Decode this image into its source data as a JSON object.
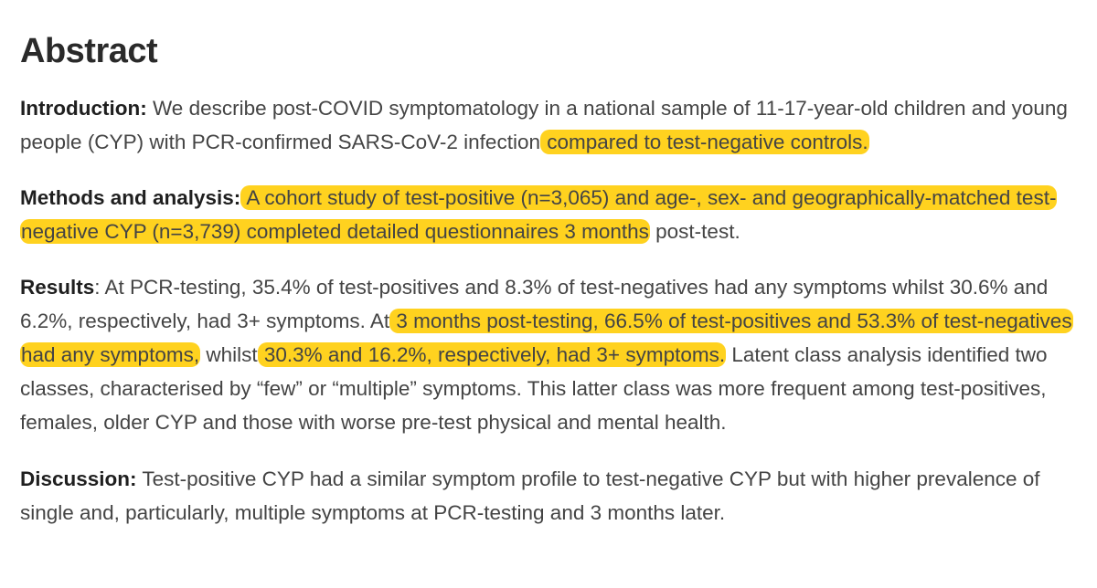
{
  "heading": "Abstract",
  "highlight_color": "#ffd21f",
  "sections": {
    "introduction": {
      "label": "Introduction:",
      "text_1": " We describe post-COVID symptomatology in a national sample of 11-17-year-old children and young people (CYP) with PCR-confirmed SARS-CoV-2 infection",
      "highlight_1": " compared to test-negative controls."
    },
    "methods": {
      "label": "Methods and analysis:",
      "highlight_1": " A cohort study of test-positive (n=3,065) and age-, sex- and geographically-matched test-negative CYP (n=3,739) completed detailed questionnaires 3 months",
      "text_1": " post-test."
    },
    "results": {
      "label": "Results",
      "text_1": ": At PCR-testing, 35.4% of test-positives and 8.3% of test-negatives had any symptoms whilst 30.6% and 6.2%, respectively, had 3+ symptoms. At",
      "highlight_1": " 3 months post-testing, 66.5% of test-positives and 53.3% of test-negatives had any symptoms,",
      "text_2": " whilst",
      "highlight_2": " 30.3% and 16.2%, respectively, had 3+ symptoms.",
      "text_3": " Latent class analysis identified two classes, characterised by “few” or “multiple” symptoms. This latter class was more frequent among test-positives, females, older CYP and those with worse pre-test physical and mental health."
    },
    "discussion": {
      "label": "Discussion:",
      "text_1": " Test-positive CYP had a similar symptom profile to test-negative CYP but with higher prevalence of single and, particularly, multiple symptoms at PCR-testing and 3 months later."
    }
  }
}
